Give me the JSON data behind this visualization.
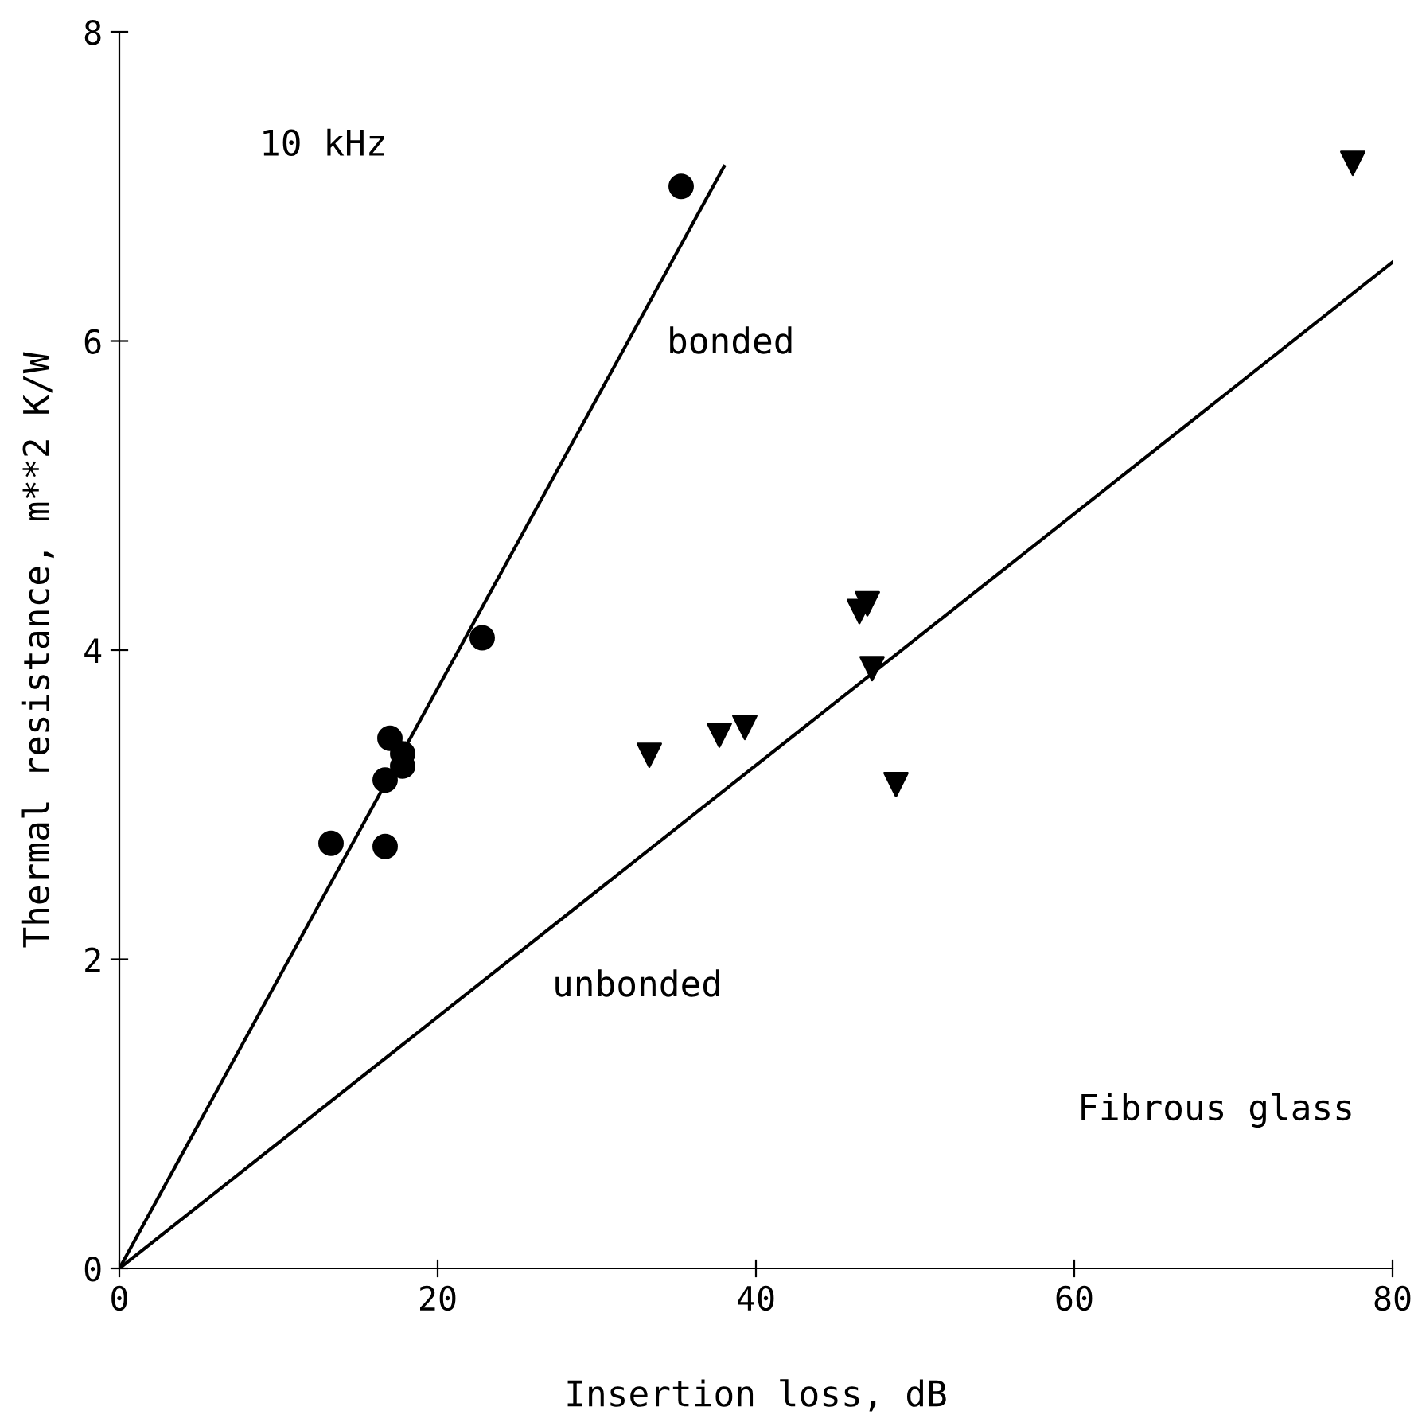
{
  "chart_data": {
    "type": "scatter",
    "xlabel": "Insertion loss, dB",
    "ylabel": "Thermal resistance, m**2 K/W",
    "xlim": [
      0,
      80
    ],
    "ylim": [
      0,
      8
    ],
    "xticks": [
      0,
      20,
      40,
      60,
      80
    ],
    "yticks": [
      0,
      2,
      4,
      6,
      8
    ],
    "grid": false,
    "legend": false,
    "series": [
      {
        "marker": "circle",
        "color": "#000000",
        "x": [
          13.3,
          16.7,
          16.7,
          17.0,
          17.8,
          17.8,
          22.8,
          35.3
        ],
        "values": [
          2.75,
          2.73,
          3.16,
          3.43,
          3.33,
          3.25,
          4.08,
          7.0
        ]
      },
      {
        "marker": "triangle",
        "color": "#000000",
        "x": [
          33.3,
          37.7,
          39.3,
          46.5,
          47.0,
          47.3,
          48.8,
          77.5
        ],
        "values": [
          3.32,
          3.45,
          3.5,
          4.25,
          4.3,
          3.88,
          3.13,
          7.15
        ]
      },
      {
        "type": "line",
        "color": "#000000",
        "x": [
          0,
          38.0
        ],
        "values": [
          0,
          7.13
        ]
      },
      {
        "type": "line",
        "color": "#000000",
        "x": [
          0,
          80
        ],
        "values": [
          0,
          6.51
        ]
      }
    ],
    "annotations": [
      "10 kHz",
      "bonded",
      "unbonded",
      "Fibrous glass"
    ]
  }
}
